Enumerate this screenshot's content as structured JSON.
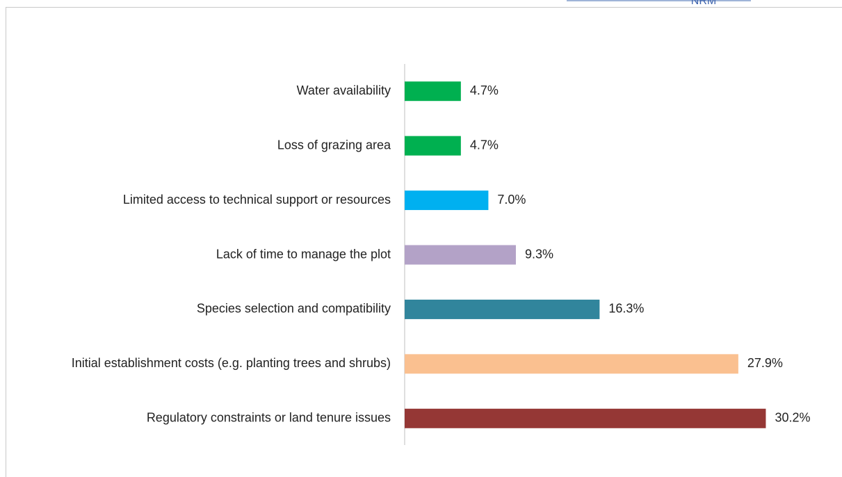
{
  "logo_text": "NRM",
  "chart_data": {
    "type": "bar",
    "orientation": "horizontal",
    "categories": [
      "Water availability",
      "Loss of grazing area",
      "Limited access to technical support or resources",
      "Lack of time to manage the plot",
      "Species selection and compatibility",
      "Initial establishment costs (e.g. planting trees and shrubs)",
      "Regulatory constraints or land tenure issues"
    ],
    "values": [
      4.7,
      4.7,
      7.0,
      9.3,
      16.3,
      27.9,
      30.2
    ],
    "value_labels": [
      "4.7%",
      "4.7%",
      "7.0%",
      "9.3%",
      "16.3%",
      "27.9%",
      "30.2%"
    ],
    "colors": [
      "#00b050",
      "#00b050",
      "#00b0f0",
      "#b3a2c7",
      "#31859c",
      "#fac090",
      "#953735"
    ],
    "xlim": [
      0,
      35
    ]
  }
}
